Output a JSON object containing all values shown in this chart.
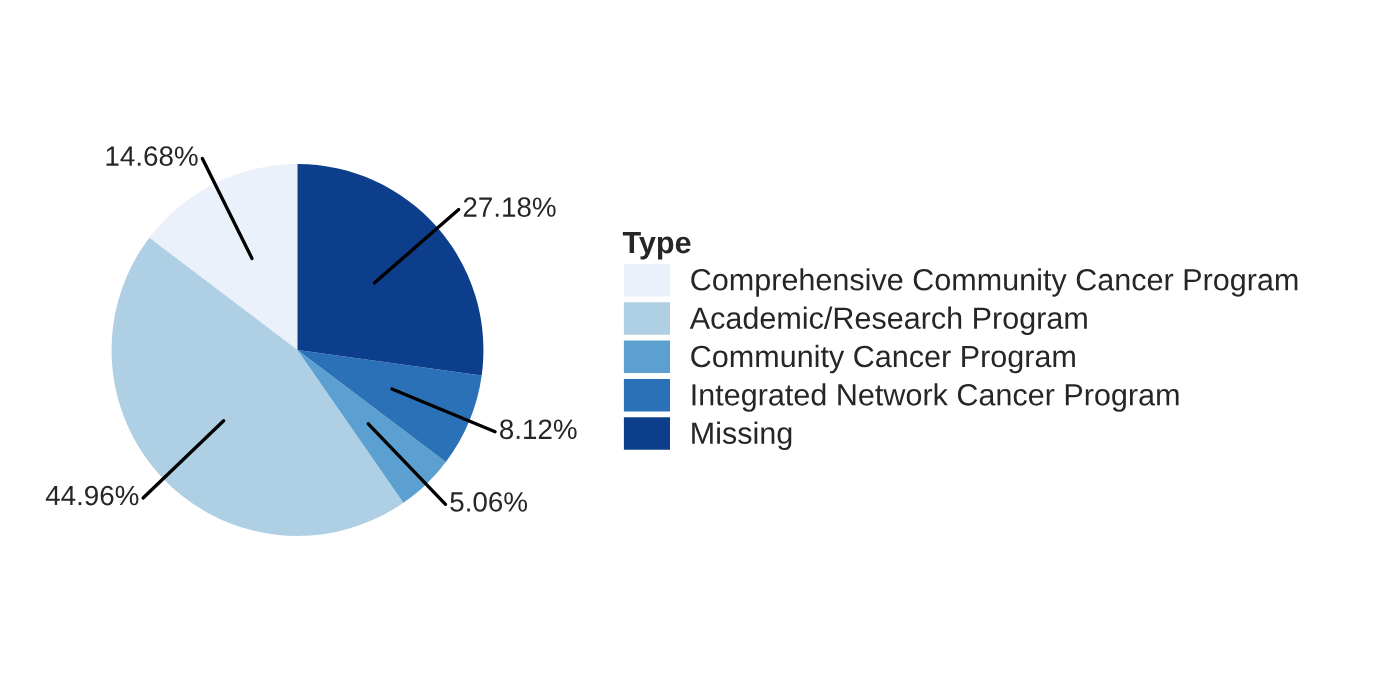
{
  "chart_data": {
    "type": "pie",
    "legend_title": "Type",
    "legend": "right",
    "categories": [
      "Comprehensive Community Cancer Program",
      "Academic/Research Program",
      "Community Cancer Program",
      "Integrated Network Cancer Program",
      "Missing"
    ],
    "values": [
      14.68,
      44.96,
      5.06,
      8.12,
      27.18
    ],
    "colors": [
      "#eaf1fb",
      "#afcfe4",
      "#5ba0d0",
      "#2b71b7",
      "#0c3e8b"
    ],
    "value_labels": [
      "14.68%",
      "44.96%",
      "5.06%",
      "8.12%",
      "27.18%"
    ]
  }
}
